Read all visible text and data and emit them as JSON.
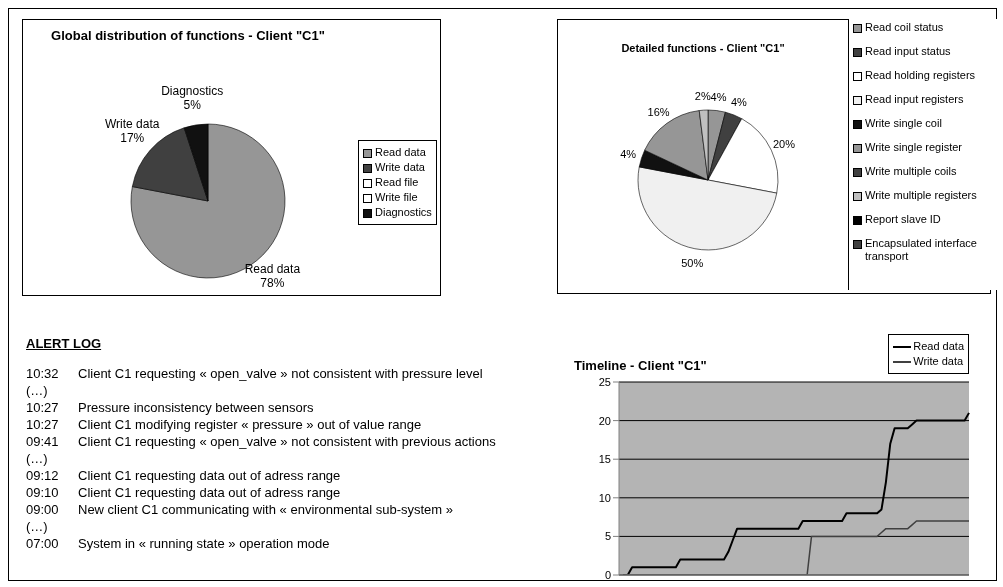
{
  "chart_data": [
    {
      "type": "pie",
      "title": "Global distribution of functions - Client \"C1\"",
      "categories": [
        "Read data",
        "Write data",
        "Read file",
        "Write file",
        "Diagnostics"
      ],
      "values": [
        78,
        17,
        0,
        0,
        5
      ],
      "colors": [
        "#969696",
        "#404040",
        "#ffffff",
        "#ffffff",
        "#111111"
      ],
      "value_labels": [
        "78%",
        "17%",
        null,
        null,
        "5%"
      ],
      "legend": "right"
    },
    {
      "type": "pie",
      "title": "Detailed functions - Client \"C1\"",
      "categories": [
        "Read coil status",
        "Read input status",
        "Read holding registers",
        "Read input registers",
        "Write single coil",
        "Write single register",
        "Write multiple coils",
        "Write multiple registers",
        "Report slave ID",
        "Encapsulated interface transport"
      ],
      "values": [
        4,
        4,
        20,
        50,
        4,
        16,
        0,
        2,
        0,
        0
      ],
      "colors": [
        "#969696",
        "#404040",
        "#ffffff",
        "#f0f0f0",
        "#111111",
        "#969696",
        "#404040",
        "#c0c0c0",
        "#000000",
        "#404040"
      ],
      "value_labels": [
        "4%",
        "4%",
        "20%",
        "50%",
        "4%",
        "16%",
        null,
        "2%",
        null,
        null
      ],
      "legend": "right"
    },
    {
      "type": "other",
      "title": "ALERT LOG",
      "annotations": [
        "10:32 Client C1 requesting « open_valve » not consistent with pressure level",
        "(…)",
        "10:27 Pressure inconsistency between sensors",
        "10:27 Client C1 modifying register « pressure » out of value range",
        "09:41 Client C1 requesting « open_valve » not consistent with previous actions",
        "(…)",
        "09:12 Client C1 requesting data out of adress range",
        "09:10 Client C1 requesting data out of adress range",
        "09:00 New client C1 communicating with « environmental sub-system »",
        "(…)",
        "07:00 System in « running state » operation mode"
      ]
    },
    {
      "type": "line",
      "title": "Timeline - Client \"C1\"",
      "categories": [
        null,
        null,
        null,
        null,
        null,
        null,
        null,
        null,
        null,
        null,
        null,
        null,
        null,
        null,
        null,
        null,
        null,
        null,
        null,
        null,
        null,
        null,
        null,
        null,
        null,
        null,
        null,
        null,
        null,
        null,
        null,
        null,
        null,
        null,
        null,
        null,
        null,
        null,
        null,
        null,
        null,
        null,
        null,
        null,
        null,
        null,
        null,
        null,
        null,
        null,
        null,
        null,
        null,
        null,
        null,
        null,
        null,
        null,
        null,
        null,
        null,
        null,
        null,
        null,
        null,
        null,
        null,
        null,
        null,
        null,
        null,
        null,
        null,
        null,
        null,
        null,
        null,
        null,
        null,
        null,
        null
      ],
      "ylim": [
        0,
        25
      ],
      "yticks": [
        0,
        5,
        10,
        15,
        20,
        25
      ],
      "grid": "y",
      "legend": "top right",
      "marker": "none",
      "series": [
        {
          "name": "Read data",
          "color": "#000000",
          "values": [
            null,
            0,
            0,
            1,
            1,
            1,
            1,
            1,
            1,
            1,
            1,
            1,
            1,
            1,
            2,
            2,
            2,
            2,
            2,
            2,
            2,
            2,
            2,
            2,
            2,
            3,
            4.5,
            6,
            6,
            6,
            6,
            6,
            6,
            6,
            6,
            6,
            6,
            6,
            6,
            6,
            6,
            6,
            7,
            7,
            7,
            7,
            7,
            7,
            7,
            7,
            7,
            7,
            8,
            8,
            8,
            8,
            8,
            8,
            8,
            8,
            8.5,
            12,
            17,
            19,
            19,
            19,
            19,
            19.5,
            20,
            20,
            20,
            20,
            20,
            20,
            20,
            20,
            20,
            20,
            20,
            20,
            21
          ]
        },
        {
          "name": "Write data",
          "color": "#404040",
          "values": [
            null,
            0,
            0,
            0,
            0,
            0,
            0,
            0,
            0,
            0,
            0,
            0,
            0,
            0,
            0,
            0,
            0,
            0,
            0,
            0,
            0,
            0,
            0,
            0,
            0,
            0,
            0,
            0,
            0,
            0,
            0,
            0,
            0,
            0,
            0,
            0,
            0,
            0,
            0,
            0,
            0,
            0,
            0,
            0,
            5,
            5,
            5,
            5,
            5,
            5,
            5,
            5,
            5,
            5,
            5,
            5,
            5,
            5,
            5,
            5,
            5.5,
            6,
            6,
            6,
            6,
            6,
            6,
            6.5,
            7,
            7,
            7,
            7,
            7,
            7,
            7,
            7,
            7,
            7,
            7,
            7,
            7
          ]
        }
      ]
    }
  ]
}
